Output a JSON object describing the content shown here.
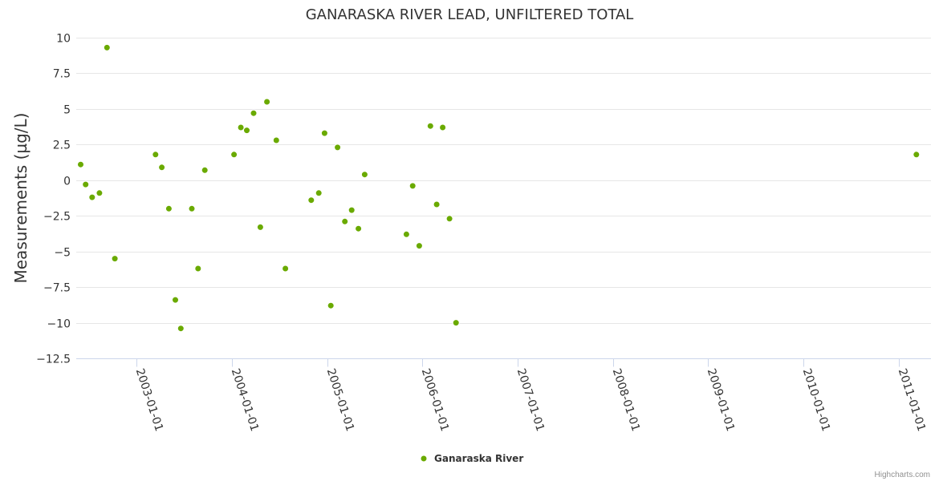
{
  "chart_data": {
    "type": "scatter",
    "title": "GANARASKA RIVER LEAD, UNFILTERED TOTAL",
    "ylabel": "Measurements (µg/L)",
    "xlabel": "",
    "ylim": [
      -12.5,
      10
    ],
    "y_ticks": [
      10,
      7.5,
      5,
      2.5,
      0,
      -2.5,
      -5,
      -7.5,
      -10,
      -12.5
    ],
    "y_tick_labels": [
      "10",
      "7.5",
      "5",
      "2.5",
      "0",
      "−2.5",
      "−5",
      "−7.5",
      "−10",
      "−12.5"
    ],
    "x_range": [
      "2002-05-15",
      "2011-05-05"
    ],
    "x_ticks": [
      "2003-01-01",
      "2004-01-01",
      "2005-01-01",
      "2006-01-01",
      "2007-01-01",
      "2008-01-01",
      "2009-01-01",
      "2010-01-01",
      "2011-01-01"
    ],
    "legend": {
      "position": "bottom-center"
    },
    "series": [
      {
        "name": "Ganaraska River",
        "color": "#6aaa00",
        "points": [
          {
            "x": "2002-06-01",
            "y": 1.1
          },
          {
            "x": "2002-06-20",
            "y": -0.3
          },
          {
            "x": "2002-07-15",
            "y": -1.2
          },
          {
            "x": "2002-08-12",
            "y": -0.9
          },
          {
            "x": "2002-09-10",
            "y": 9.3
          },
          {
            "x": "2002-10-10",
            "y": -5.5
          },
          {
            "x": "2003-03-15",
            "y": 1.8
          },
          {
            "x": "2003-04-08",
            "y": 0.9
          },
          {
            "x": "2003-05-05",
            "y": -2.0
          },
          {
            "x": "2003-05-30",
            "y": -8.4
          },
          {
            "x": "2003-06-20",
            "y": -10.4
          },
          {
            "x": "2003-08-01",
            "y": -2.0
          },
          {
            "x": "2003-08-25",
            "y": -6.2
          },
          {
            "x": "2003-09-20",
            "y": 0.7
          },
          {
            "x": "2004-01-10",
            "y": 1.8
          },
          {
            "x": "2004-02-05",
            "y": 3.7
          },
          {
            "x": "2004-02-28",
            "y": 3.5
          },
          {
            "x": "2004-03-25",
            "y": 4.7
          },
          {
            "x": "2004-04-20",
            "y": -3.3
          },
          {
            "x": "2004-05-15",
            "y": 5.5
          },
          {
            "x": "2004-06-20",
            "y": 2.8
          },
          {
            "x": "2004-07-25",
            "y": -6.2
          },
          {
            "x": "2004-11-01",
            "y": -1.4
          },
          {
            "x": "2004-11-30",
            "y": -0.9
          },
          {
            "x": "2004-12-22",
            "y": 3.3
          },
          {
            "x": "2005-01-15",
            "y": -8.8
          },
          {
            "x": "2005-02-10",
            "y": 2.3
          },
          {
            "x": "2005-03-10",
            "y": -2.9
          },
          {
            "x": "2005-04-05",
            "y": -2.1
          },
          {
            "x": "2005-05-01",
            "y": -3.4
          },
          {
            "x": "2005-05-25",
            "y": 0.4
          },
          {
            "x": "2005-11-01",
            "y": -3.8
          },
          {
            "x": "2005-11-25",
            "y": -0.4
          },
          {
            "x": "2005-12-20",
            "y": -4.6
          },
          {
            "x": "2006-02-01",
            "y": 3.8
          },
          {
            "x": "2006-02-25",
            "y": -1.7
          },
          {
            "x": "2006-03-20",
            "y": 3.7
          },
          {
            "x": "2006-04-15",
            "y": -2.7
          },
          {
            "x": "2006-05-10",
            "y": -10.0
          },
          {
            "x": "2011-03-10",
            "y": 1.8
          }
        ]
      }
    ]
  },
  "credit": "Highcharts.com"
}
